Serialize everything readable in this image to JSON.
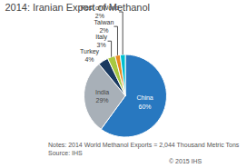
{
  "chart_data": {
    "type": "pie",
    "title": "2014: Iranian Export of Methanol",
    "categories": [
      "China",
      "India",
      "Turkey",
      "Italy",
      "Taiwan",
      "Rest of World"
    ],
    "values": [
      60,
      29,
      4,
      3,
      2,
      2
    ],
    "value_labels": [
      "60%",
      "29%",
      "4%",
      "3%",
      "2%",
      "2%"
    ],
    "colors": [
      "#2878c0",
      "#a8b0b8",
      "#1a3a60",
      "#a8c840",
      "#e88820",
      "#00c0d0"
    ],
    "annotations": [
      "Notes: 2014 World Methanol Exports = 2,044 Thousand Metric Tons",
      "Source: IHS",
      "© 2015 IHS"
    ]
  }
}
